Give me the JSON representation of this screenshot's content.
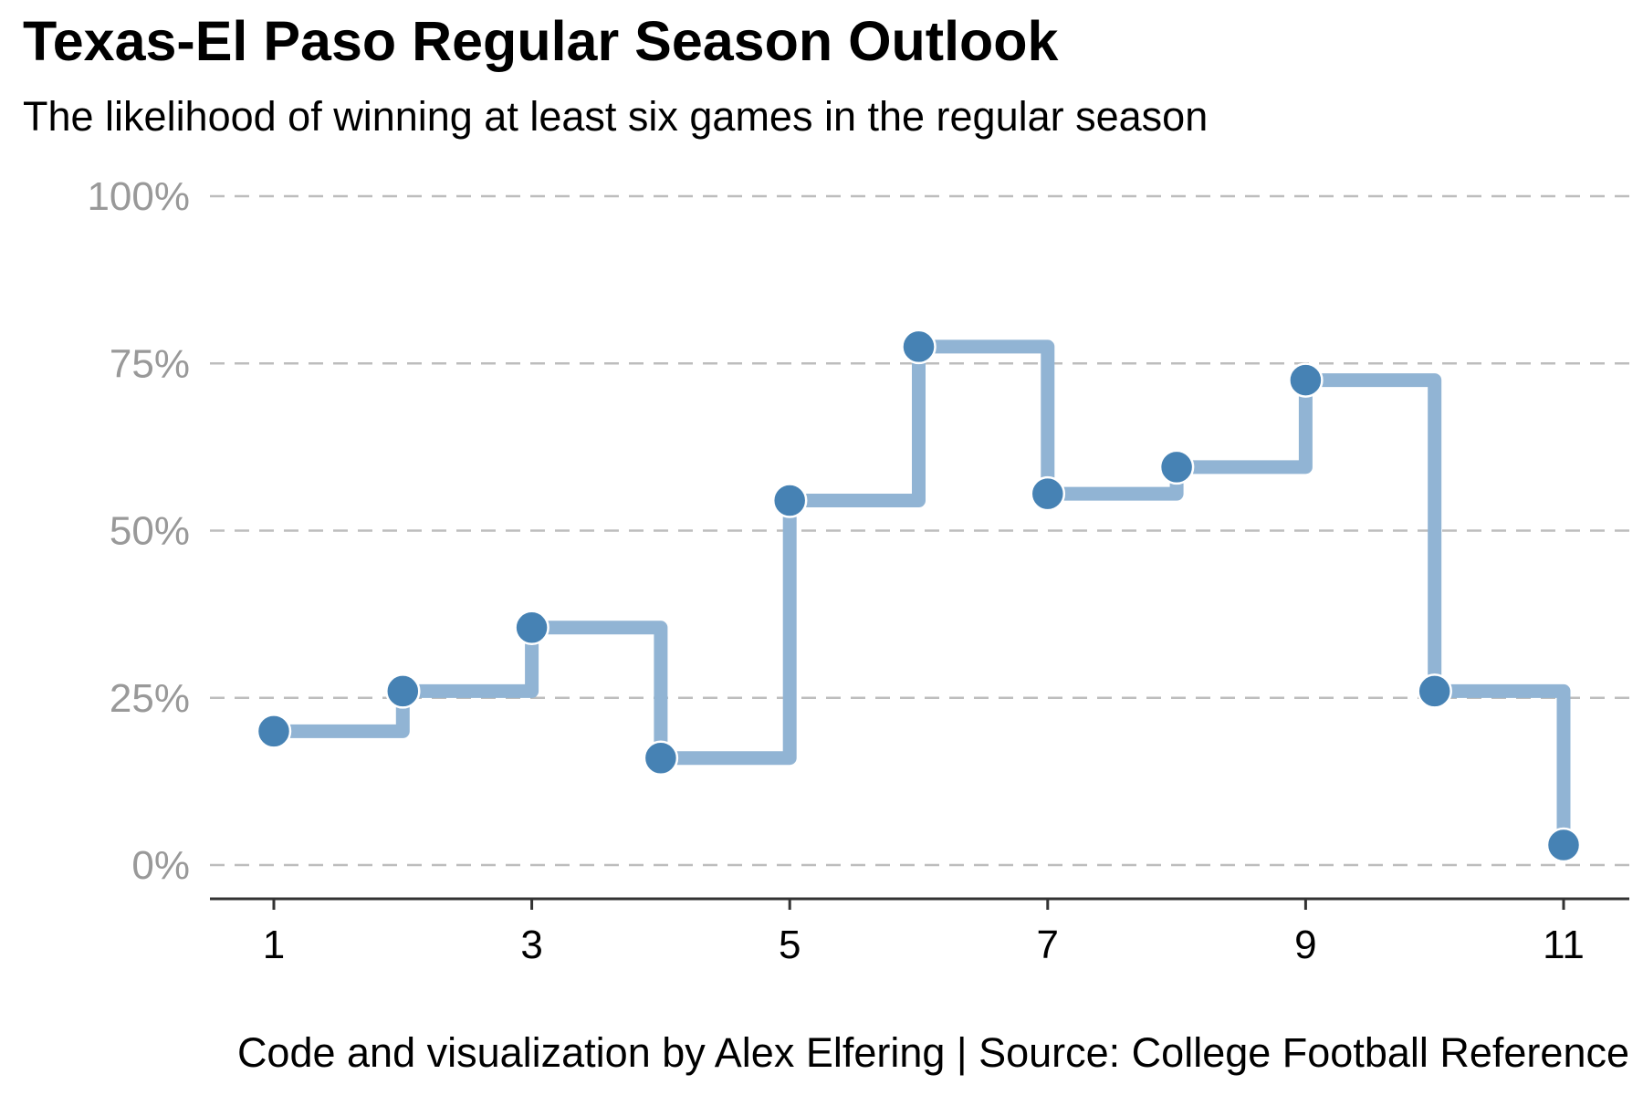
{
  "chart_data": {
    "type": "line",
    "title": "Texas-El Paso Regular Season Outlook",
    "subtitle": "The likelihood of winning at least six games in the regular season",
    "caption": "Code and visualization by Alex Elfering | Source: College Football Reference",
    "step": true,
    "x": [
      1,
      2,
      3,
      4,
      5,
      6,
      7,
      8,
      9,
      10,
      11
    ],
    "values": [
      0.2,
      0.26,
      0.355,
      0.16,
      0.545,
      0.775,
      0.555,
      0.595,
      0.725,
      0.26,
      0.03
    ],
    "xlim": [
      0.4,
      11.5
    ],
    "ylim": [
      -0.05,
      1.0
    ],
    "x_ticks": [
      1,
      3,
      5,
      7,
      9,
      11
    ],
    "y_ticks": [
      0,
      0.25,
      0.5,
      0.75,
      1.0
    ],
    "y_tick_labels": [
      "0%",
      "25%",
      "50%",
      "75%",
      "100%"
    ],
    "xlabel": "",
    "ylabel": "",
    "grid": "horizontal dashed",
    "colors": {
      "line": "#91b4d4",
      "point": "#4682b4",
      "point_outline": "#ffffff",
      "grid": "#bdbdbd",
      "y_tick_text": "#999999",
      "x_tick_text": "#000000",
      "axis": "#333333"
    }
  }
}
